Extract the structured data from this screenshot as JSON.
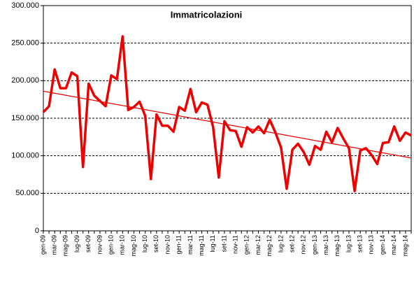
{
  "chart_data": {
    "type": "line",
    "title": "Immatricolazioni",
    "categories": [
      "gen-09",
      null,
      "mar-09",
      null,
      "mag-09",
      null,
      "lug-09",
      null,
      "set-09",
      null,
      "nov-09",
      null,
      "gen-10",
      null,
      "mar-10",
      null,
      "mag-10",
      null,
      "lug-10",
      null,
      "set-10",
      null,
      "nov-10",
      null,
      "gen-11",
      null,
      "mar-11",
      null,
      "mag-11",
      null,
      "lug-11",
      null,
      "set-11",
      null,
      "nov-11",
      null,
      "gen-12",
      null,
      "mar-12",
      null,
      "mag-12",
      null,
      "lug-12",
      null,
      "set-12",
      null,
      "nov-12",
      null,
      "gen-13",
      null,
      "mar-13",
      null,
      "mag-13",
      null,
      "lug-13",
      null,
      "set-13",
      null,
      "nov-13",
      null,
      "gen-14",
      null,
      "mar-14",
      null,
      "mag-14",
      null
    ],
    "series": [
      {
        "color": "#ee0000",
        "values": [
          158000,
          166000,
          215000,
          190000,
          190000,
          211000,
          206000,
          85000,
          196000,
          180000,
          173000,
          166000,
          207000,
          202000,
          259000,
          161000,
          165000,
          172000,
          153000,
          69000,
          155000,
          140000,
          140000,
          132000,
          165000,
          160000,
          189000,
          158000,
          171000,
          168000,
          138000,
          71000,
          146000,
          134000,
          133000,
          112000,
          138000,
          131000,
          139000,
          130000,
          148000,
          131000,
          111000,
          56000,
          108000,
          116000,
          105000,
          88000,
          113000,
          108000,
          132000,
          118000,
          137000,
          123000,
          110000,
          53000,
          107000,
          110000,
          101000,
          89000,
          117000,
          118000,
          139000,
          120000,
          131000,
          127000
        ]
      }
    ],
    "trend": {
      "color": "#ee0000",
      "start": 186000,
      "end": 97000
    },
    "ylim": [
      0,
      300000
    ],
    "yticks": [
      0,
      {
        "value": 50000,
        "label": "50.000"
      },
      {
        "value": 100000,
        "label": "100.000"
      },
      {
        "value": 150000,
        "label": "150.000"
      },
      {
        "value": 200000,
        "label": "200.000"
      },
      {
        "value": 250000,
        "label": "250.000"
      },
      {
        "value": 300000,
        "label": "300.000"
      }
    ],
    "grid": true
  }
}
